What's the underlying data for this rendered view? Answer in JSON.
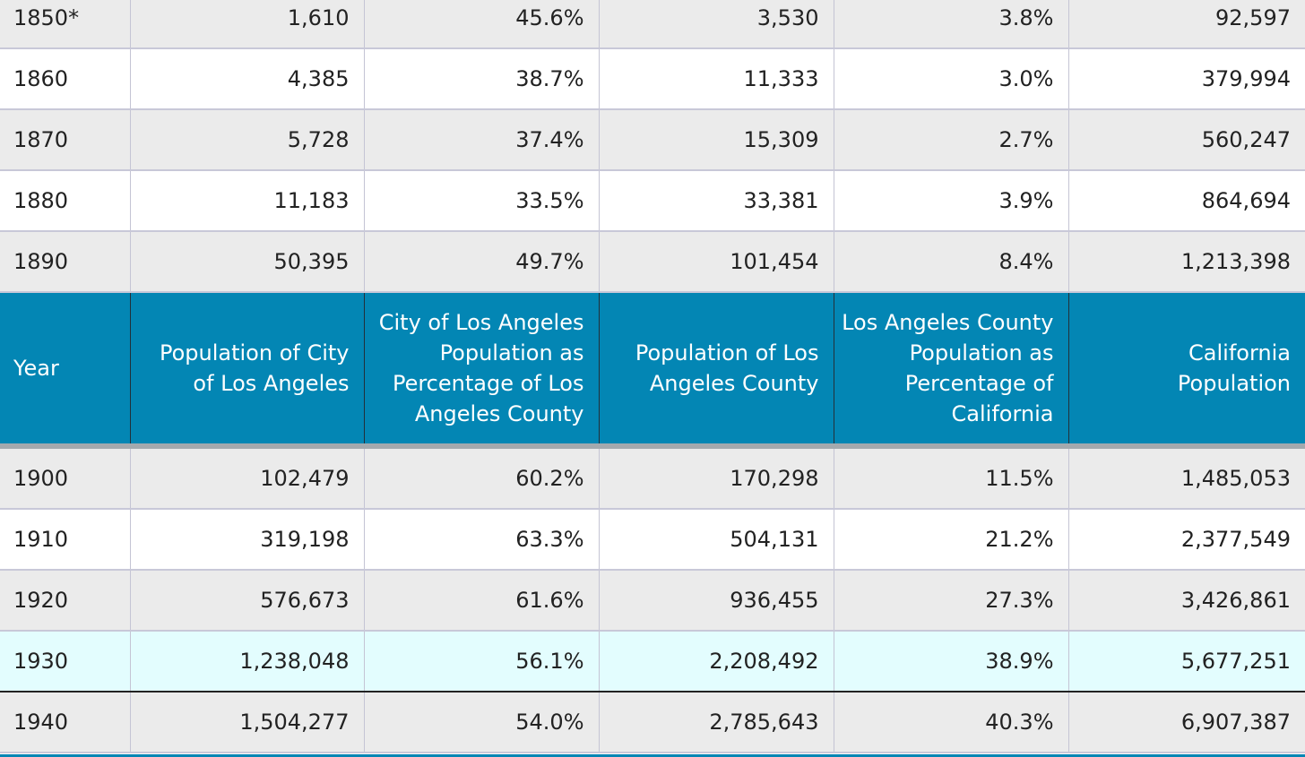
{
  "table": {
    "header": {
      "year": "Year",
      "city_pop": "Population of City of Los Angeles",
      "city_pct": "City of Los Angeles Population as Percentage of Los Angeles County",
      "county_pop": "Population of Los Angeles County",
      "county_pct": "Los Angeles County Population as Percentage of California",
      "ca_pop": "California Population"
    },
    "rows_top": [
      {
        "year": "1850*",
        "city_pop": "1,610",
        "city_pct": "45.6%",
        "county_pop": "3,530",
        "county_pct": "3.8%",
        "ca_pop": "92,597"
      },
      {
        "year": "1860",
        "city_pop": "4,385",
        "city_pct": "38.7%",
        "county_pop": "11,333",
        "county_pct": "3.0%",
        "ca_pop": "379,994"
      },
      {
        "year": "1870",
        "city_pop": "5,728",
        "city_pct": "37.4%",
        "county_pop": "15,309",
        "county_pct": "2.7%",
        "ca_pop": "560,247"
      },
      {
        "year": "1880",
        "city_pop": "11,183",
        "city_pct": "33.5%",
        "county_pop": "33,381",
        "county_pct": "3.9%",
        "ca_pop": "864,694"
      },
      {
        "year": "1890",
        "city_pop": "50,395",
        "city_pct": "49.7%",
        "county_pop": "101,454",
        "county_pct": "8.4%",
        "ca_pop": "1,213,398"
      }
    ],
    "rows_bottom": [
      {
        "year": "1900",
        "city_pop": "102,479",
        "city_pct": "60.2%",
        "county_pop": "170,298",
        "county_pct": "11.5%",
        "ca_pop": "1,485,053"
      },
      {
        "year": "1910",
        "city_pop": "319,198",
        "city_pct": "63.3%",
        "county_pop": "504,131",
        "county_pct": "21.2%",
        "ca_pop": "2,377,549"
      },
      {
        "year": "1920",
        "city_pop": "576,673",
        "city_pct": "61.6%",
        "county_pop": "936,455",
        "county_pct": "27.3%",
        "ca_pop": "3,426,861"
      },
      {
        "year": "1930",
        "city_pop": "1,238,048",
        "city_pct": "56.1%",
        "county_pop": "2,208,492",
        "county_pct": "38.9%",
        "ca_pop": "5,677,251",
        "highlighted": true
      },
      {
        "year": "1940",
        "city_pop": "1,504,277",
        "city_pct": "54.0%",
        "county_pop": "2,785,643",
        "county_pct": "40.3%",
        "ca_pop": "6,907,387"
      }
    ],
    "colors": {
      "header_bg": "#0386b4",
      "row_alt_bg": "#ebebeb",
      "highlight_bg": "#e3fdfe"
    }
  }
}
